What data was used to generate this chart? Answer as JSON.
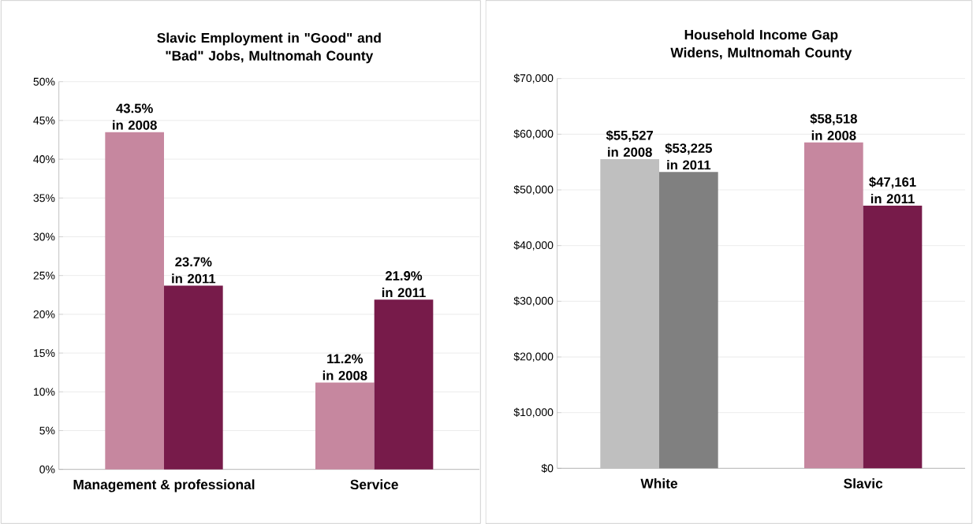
{
  "chart_data": [
    {
      "type": "bar",
      "title": "Slavic Employment in \"Good\" and \"Bad\" Jobs, Multnomah County",
      "categories": [
        "Management & professional",
        "Service"
      ],
      "series": [
        {
          "color": "#c6879f",
          "values": [
            43.5,
            11.2
          ],
          "value_labels": [
            "43.5% in 2008",
            "11.2% in 2008"
          ]
        },
        {
          "color": "#771b4a",
          "values": [
            23.7,
            21.9
          ],
          "value_labels": [
            "23.7% in 2011",
            "21.9% in 2011"
          ]
        }
      ],
      "ylim": [
        0,
        50
      ],
      "yticks": [
        {
          "value": 0,
          "label": "0%"
        },
        {
          "value": 5,
          "label": "5%"
        },
        {
          "value": 10,
          "label": "10%"
        },
        {
          "value": 15,
          "label": "15%"
        },
        {
          "value": 20,
          "label": "20%"
        },
        {
          "value": 25,
          "label": "25%"
        },
        {
          "value": 30,
          "label": "30%"
        },
        {
          "value": 35,
          "label": "35%"
        },
        {
          "value": 40,
          "label": "40%"
        },
        {
          "value": 45,
          "label": "45%"
        },
        {
          "value": 50,
          "label": "50%"
        }
      ],
      "grid": "y"
    },
    {
      "type": "bar",
      "title": "Household Income Gap Widens, Multnomah County",
      "categories": [
        "White",
        "Slavic"
      ],
      "series": [
        {
          "colors": [
            "#bfbfbf",
            "#c6879f"
          ],
          "values": [
            55527,
            58518
          ],
          "value_labels": [
            "$55,527 in 2008",
            "$58,518 in 2008"
          ]
        },
        {
          "colors": [
            "#808080",
            "#771b4a"
          ],
          "values": [
            53225,
            47161
          ],
          "value_labels": [
            "$53,225 in 2011",
            "$47,161 in 2011"
          ]
        }
      ],
      "ylim": [
        0,
        70000
      ],
      "yticks": [
        {
          "value": 0,
          "label": "$0"
        },
        {
          "value": 10000,
          "label": "$10,000"
        },
        {
          "value": 20000,
          "label": "$20,000"
        },
        {
          "value": 30000,
          "label": "$30,000"
        },
        {
          "value": 40000,
          "label": "$40,000"
        },
        {
          "value": 50000,
          "label": "$50,000"
        },
        {
          "value": 60000,
          "label": "$60,000"
        },
        {
          "value": 70000,
          "label": "$70,000"
        }
      ],
      "grid": "y"
    }
  ]
}
